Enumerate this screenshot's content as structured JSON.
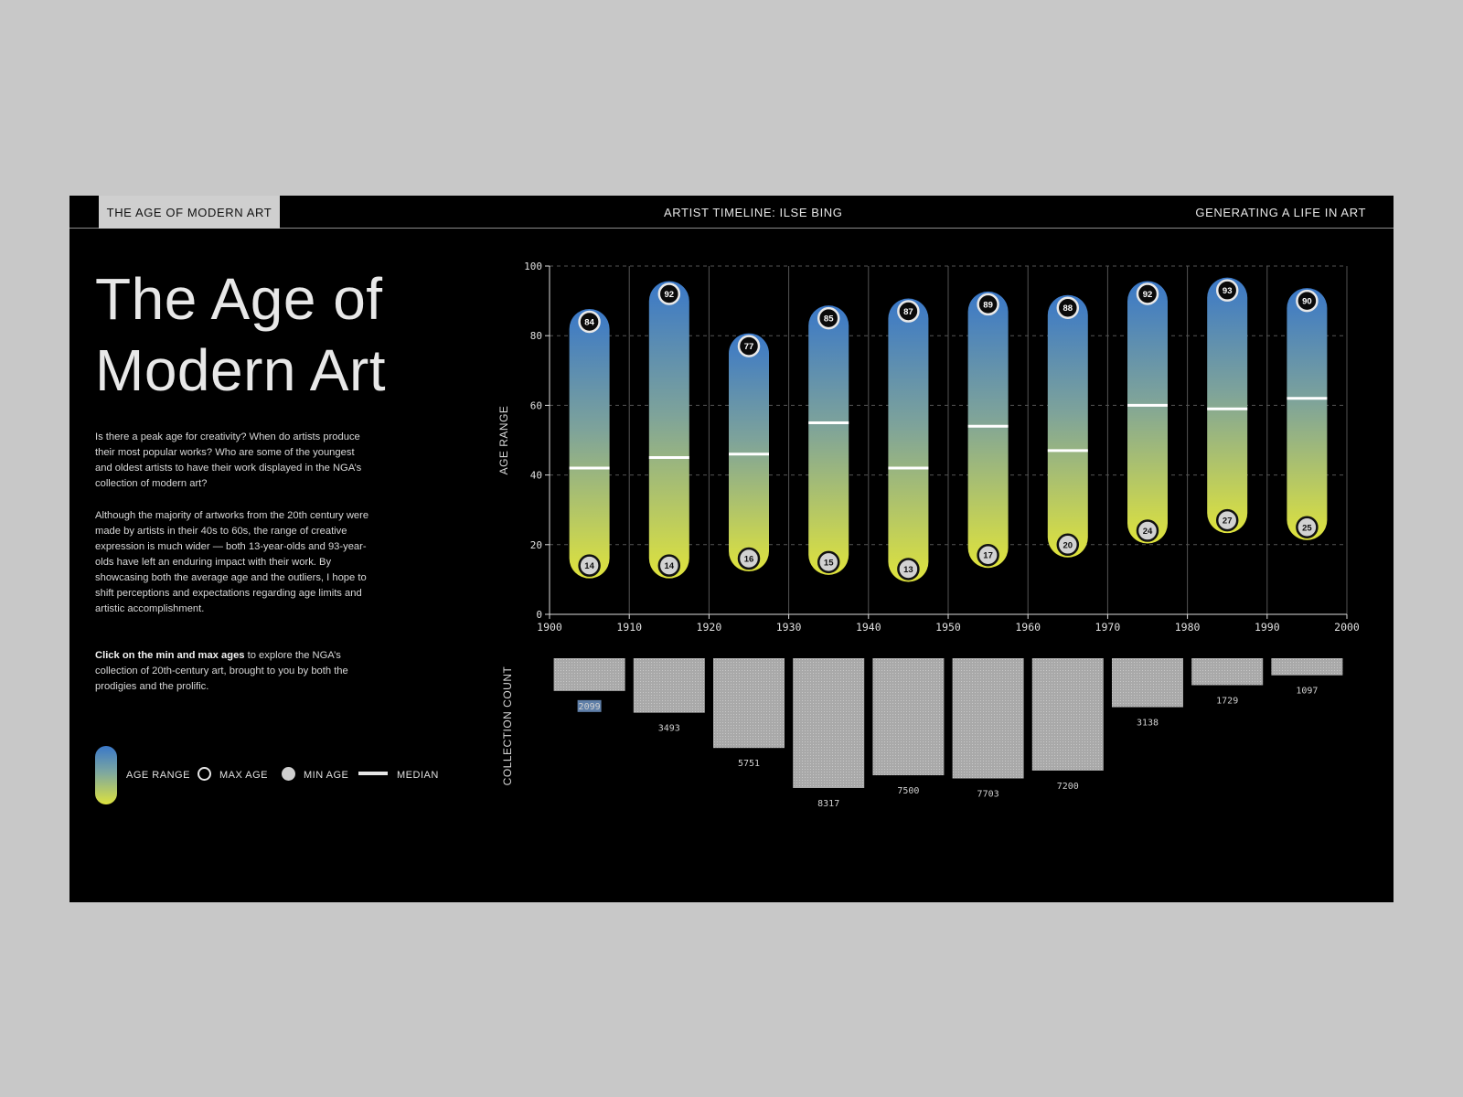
{
  "nav": {
    "tab_active": "THE AGE OF MODERN ART",
    "center": "ARTIST TIMELINE: ILSE BING",
    "right": "GENERATING A LIFE IN ART"
  },
  "title_line1": "The Age of",
  "title_line2": "Modern Art",
  "intro": {
    "p1": "Is there a peak age for creativity? When do artists produce their most popular works? Who are some of the youngest and oldest artists to have their work displayed in the NGA’s collection of modern art?",
    "p2": "Although the majority of artworks from the 20th century were made by artists in their 40s to 60s, the range of creative expression is much wider — both 13-year-olds and 93-year-olds have left an enduring impact with their work. By showcasing both the average age and the outliers, I hope to shift perceptions and expectations regarding age limits and artistic accomplishment.",
    "p3_bold": "Click on the min and max ages",
    "p3_rest": " to explore the NGA’s collection of 20th-century art, brought to you by both the prodigies and the prolific."
  },
  "legend": {
    "age_range": "AGE RANGE",
    "max_age": "MAX AGE",
    "min_age": "MIN AGE",
    "median": "MEDIAN"
  },
  "colors": {
    "gradient_top": "#3a78c8",
    "gradient_mid": "#7ea39a",
    "gradient_bottom": "#dfe33c",
    "bar_fill": "#a9a9a9",
    "highlight": "#5f7fa8"
  },
  "chart_data": [
    {
      "type": "range",
      "ylabel": "AGE RANGE",
      "ylim": [
        0,
        100
      ],
      "yticks": [
        0,
        20,
        40,
        60,
        80,
        100
      ],
      "xlim": [
        1900,
        2000
      ],
      "xticks": [
        1900,
        1910,
        1920,
        1930,
        1940,
        1950,
        1960,
        1970,
        1980,
        1990,
        2000
      ],
      "grid": true,
      "decades": [
        1900,
        1910,
        1920,
        1930,
        1940,
        1950,
        1960,
        1970,
        1980,
        1990
      ],
      "max": [
        84,
        92,
        77,
        85,
        87,
        89,
        88,
        92,
        93,
        90
      ],
      "min": [
        14,
        14,
        16,
        15,
        13,
        17,
        20,
        24,
        27,
        25
      ],
      "median": [
        42,
        45,
        46,
        55,
        42,
        54,
        47,
        60,
        59,
        62
      ]
    },
    {
      "type": "bar",
      "ylabel": "COLLECTION COUNT",
      "categories": [
        1900,
        1910,
        1920,
        1930,
        1940,
        1950,
        1960,
        1970,
        1980,
        1990
      ],
      "values": [
        2099,
        3493,
        5751,
        8317,
        7500,
        7703,
        7200,
        3138,
        1729,
        1097
      ],
      "highlighted_index": 0
    }
  ]
}
